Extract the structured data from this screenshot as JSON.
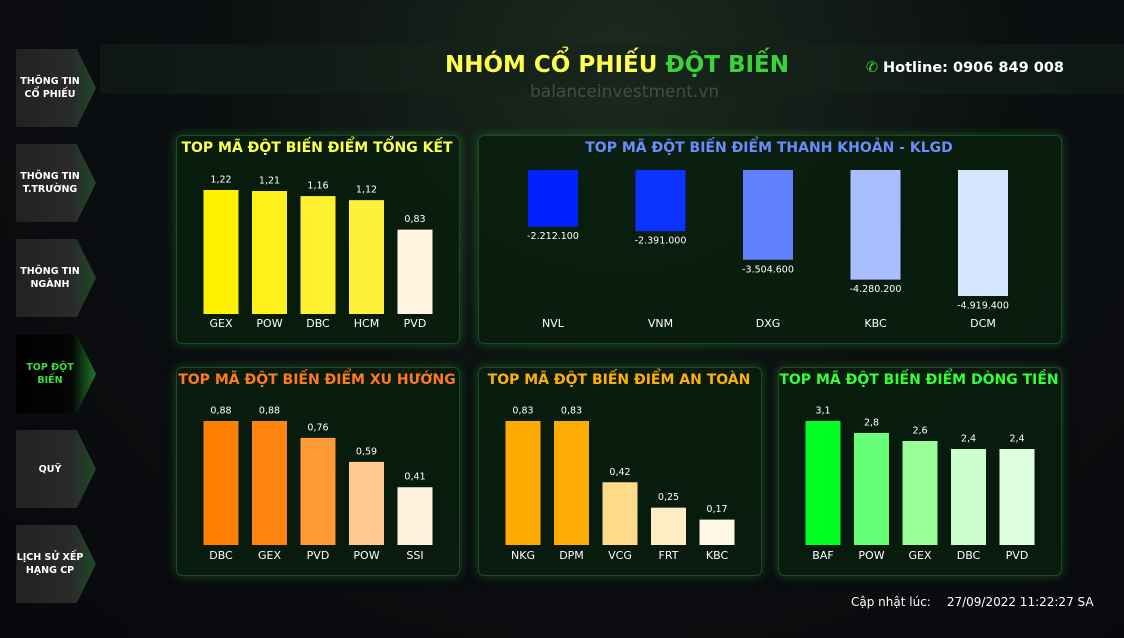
{
  "sidebar": {
    "items": [
      {
        "label": "THÔNG TIN\nCỔ PHIẾU",
        "active": false
      },
      {
        "label": "THÔNG TIN\nT.TRƯỜNG",
        "active": false
      },
      {
        "label": "THÔNG TIN\nNGÀNH",
        "active": false
      },
      {
        "label": "TOP ĐỘT\nBIẾN",
        "active": true
      },
      {
        "label": "QUỸ",
        "active": false
      },
      {
        "label": "LỊCH SỬ XẾP\nHẠNG CP",
        "active": false
      }
    ]
  },
  "header": {
    "title_part1": "NHÓM CỔ PHIẾU",
    "title_part2": "ĐỘT BIẾN",
    "hotline": "Hotline: 0906 849 008",
    "watermark": "balanceinvestment.vn"
  },
  "footer": {
    "update_label": "Cập nhật lúc:",
    "update_time": "27/09/2022 11:22:27 SA"
  },
  "chart_data": [
    {
      "type": "bar",
      "title": "TOP MÃ ĐỘT BIẾN ĐIỂM TỔNG KẾT",
      "title_color": "#ffff4d",
      "categories": [
        "GEX",
        "POW",
        "DBC",
        "HCM",
        "PVD"
      ],
      "values": [
        1.22,
        1.21,
        1.16,
        1.12,
        0.83
      ],
      "value_labels": [
        "1,22",
        "1,21",
        "1,16",
        "1,12",
        "0,83"
      ],
      "colors": [
        "#fff200",
        "#fff21a",
        "#fff030",
        "#fff03a",
        "#fff5e0"
      ]
    },
    {
      "type": "bar",
      "title": "TOP MÃ ĐỘT BIẾN ĐIỂM THANH KHOẢN - KLGD",
      "title_color": "#6b8cff",
      "categories": [
        "NVL",
        "VNM",
        "DXG",
        "KBC",
        "DCM"
      ],
      "values": [
        -2212100,
        -2391000,
        -3504600,
        -4280200,
        -4919400
      ],
      "value_labels": [
        "-2.212.100",
        "-2.391.000",
        "-3.504.600",
        "-4.280.200",
        "-4.919.400"
      ],
      "colors": [
        "#0022ff",
        "#0a33ff",
        "#6080ff",
        "#a8beff",
        "#d5e6ff"
      ]
    },
    {
      "type": "bar",
      "title": "TOP MÃ ĐỘT BIẾN ĐIỂM XU HƯỚNG",
      "title_color": "#ff7a1a",
      "categories": [
        "DBC",
        "GEX",
        "PVD",
        "POW",
        "SSI"
      ],
      "values": [
        0.88,
        0.88,
        0.76,
        0.59,
        0.41
      ],
      "value_labels": [
        "0,88",
        "0,88",
        "0,76",
        "0,59",
        "0,41"
      ],
      "colors": [
        "#ff7f00",
        "#ff8510",
        "#ff9a35",
        "#ffc990",
        "#fff0dd"
      ]
    },
    {
      "type": "bar",
      "title": "TOP MÃ ĐỘT BIẾN ĐIỂM AN TOÀN",
      "title_color": "#ffb000",
      "categories": [
        "NKG",
        "DPM",
        "VCG",
        "FRT",
        "KBC"
      ],
      "values": [
        0.83,
        0.83,
        0.42,
        0.25,
        0.17
      ],
      "value_labels": [
        "0,83",
        "0,83",
        "0,42",
        "0,25",
        "0,17"
      ],
      "colors": [
        "#ffaa00",
        "#ffad05",
        "#ffdb8a",
        "#ffecc4",
        "#fff8e5"
      ]
    },
    {
      "type": "bar",
      "title": "TOP MÃ ĐỘT BIẾN ĐIỂM DÒNG TIỀN",
      "title_color": "#33ff33",
      "categories": [
        "BAF",
        "POW",
        "GEX",
        "DBC",
        "PVD"
      ],
      "values": [
        3.1,
        2.8,
        2.6,
        2.4,
        2.4
      ],
      "value_labels": [
        "3,1",
        "2,8",
        "2,6",
        "2,4",
        "2,4"
      ],
      "colors": [
        "#00ff22",
        "#66ff77",
        "#99ff99",
        "#ccffcc",
        "#ddffdd"
      ]
    }
  ]
}
